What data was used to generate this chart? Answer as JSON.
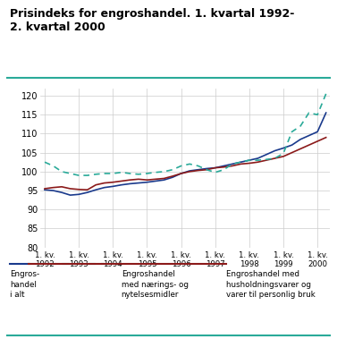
{
  "title": "Prisindeks for engroshandel. 1. kvartal 1992-\n2. kvartal 2000",
  "ylim": [
    80,
    122
  ],
  "yticks": [
    80,
    85,
    90,
    95,
    100,
    105,
    110,
    115,
    120
  ],
  "x_labels": [
    "1. kv.\n1992",
    "1. kv.\n1993",
    "1. kv.\n1994",
    "1. kv.\n1995",
    "1. kv.\n1996",
    "1. kv.\n1997",
    "1. kv.\n1998",
    "1. kv.\n1999",
    "1. kv.\n2000"
  ],
  "x_positions": [
    0,
    4,
    8,
    12,
    16,
    20,
    24,
    28,
    32
  ],
  "blue_line": [
    95.2,
    95.0,
    94.5,
    93.8,
    94.0,
    94.5,
    95.2,
    95.8,
    96.1,
    96.5,
    96.8,
    97.0,
    97.2,
    97.5,
    97.8,
    98.5,
    99.5,
    100.2,
    100.5,
    100.8,
    101.0,
    101.5,
    102.0,
    102.5,
    103.0,
    103.5,
    104.5,
    105.5,
    106.2,
    107.0,
    108.5,
    109.5,
    110.5,
    115.5
  ],
  "red_line": [
    95.5,
    95.8,
    96.0,
    95.5,
    95.3,
    95.2,
    96.5,
    97.0,
    97.2,
    97.5,
    97.8,
    98.0,
    97.8,
    98.0,
    98.2,
    98.8,
    99.5,
    100.0,
    100.3,
    100.5,
    101.0,
    101.2,
    101.5,
    102.0,
    102.2,
    102.5,
    103.0,
    103.5,
    104.0,
    105.0,
    106.0,
    107.0,
    108.0,
    109.0
  ],
  "teal_line": [
    102.5,
    101.5,
    100.0,
    99.5,
    99.0,
    99.0,
    99.3,
    99.5,
    99.5,
    99.8,
    99.5,
    99.3,
    99.5,
    99.8,
    100.0,
    100.5,
    101.5,
    102.0,
    101.5,
    100.5,
    99.8,
    100.5,
    102.0,
    102.5,
    103.0,
    103.0,
    103.2,
    103.5,
    104.8,
    110.5,
    112.0,
    115.5,
    115.0,
    120.5
  ],
  "blue_color": "#1a3a8c",
  "red_color": "#8b1a1a",
  "teal_color": "#2aaa99",
  "bg_color": "#ffffff",
  "grid_color": "#cccccc",
  "legend1": "Engros-\nhandel\ni alt",
  "legend2": "Engroshandel\nmed nærings- og\nnytelsesmidler",
  "legend3": "Engroshandel med\nhusholdningsvarer og\nvarer til personlig bruk",
  "title_color": "#000000",
  "header_line_color": "#2aaa99",
  "title_fontsize": 9.0
}
